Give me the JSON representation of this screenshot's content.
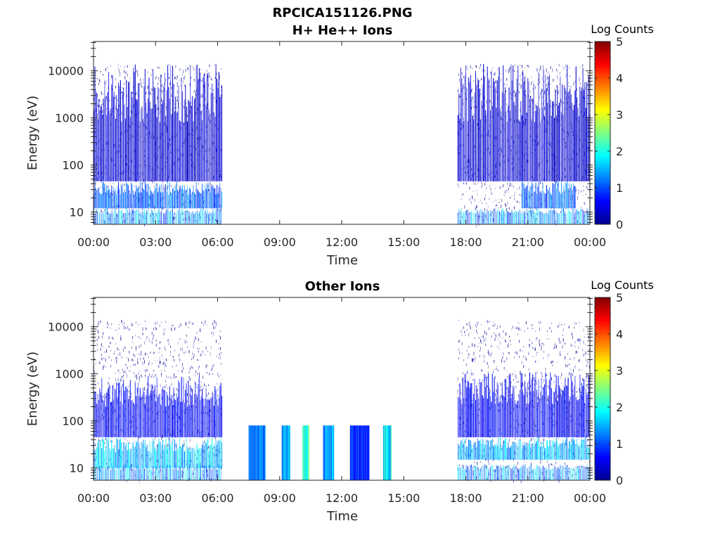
{
  "figure": {
    "title": "RPCICA151126.PNG"
  },
  "colormap": "jet",
  "chart_data": [
    {
      "type": "heatmap",
      "title": "H+ He++ Ions",
      "xlabel": "Time",
      "ylabel": "Energy (eV)",
      "x_ticks": [
        "00:00",
        "03:00",
        "06:00",
        "09:00",
        "12:00",
        "15:00",
        "18:00",
        "21:00",
        "00:00"
      ],
      "xlim_hours": [
        0,
        24
      ],
      "y_scale": "log",
      "y_ticks": [
        "10",
        "100",
        "1000",
        "10000"
      ],
      "ylim": [
        5.5,
        42000
      ],
      "colorbar": {
        "label": "Log Counts",
        "ticks": [
          "0",
          "1",
          "2",
          "3",
          "4",
          "5"
        ],
        "range": [
          0,
          5
        ]
      },
      "data_intervals_hours": [
        [
          0.0,
          6.2
        ],
        [
          17.6,
          24.0
        ]
      ],
      "gap_hours": [
        6.2,
        17.6
      ],
      "features": [
        {
          "start_h": 0.0,
          "end_h": 6.2,
          "e_low": 12,
          "e_high": 45,
          "log_counts": 1.1
        },
        {
          "start_h": 20.7,
          "end_h": 23.3,
          "e_low": 12,
          "e_high": 45,
          "log_counts": 1.1
        },
        {
          "start_h": 0.0,
          "end_h": 6.2,
          "e_low": 45,
          "e_high": 14000,
          "log_counts": 0.4
        },
        {
          "start_h": 17.6,
          "end_h": 24.0,
          "e_low": 45,
          "e_high": 14000,
          "log_counts": 0.4
        }
      ]
    },
    {
      "type": "heatmap",
      "title": "Other Ions",
      "xlabel": "Time",
      "ylabel": "Energy (eV)",
      "x_ticks": [
        "00:00",
        "03:00",
        "06:00",
        "09:00",
        "12:00",
        "15:00",
        "18:00",
        "21:00",
        "00:00"
      ],
      "xlim_hours": [
        0,
        24
      ],
      "y_scale": "log",
      "y_ticks": [
        "10",
        "100",
        "1000",
        "10000"
      ],
      "ylim": [
        5.5,
        42000
      ],
      "colorbar": {
        "label": "Log Counts",
        "ticks": [
          "0",
          "1",
          "2",
          "3",
          "4",
          "5"
        ],
        "range": [
          0,
          5
        ]
      },
      "data_intervals_hours": [
        [
          0.0,
          6.2
        ],
        [
          17.6,
          24.0
        ]
      ],
      "gap_hours": [
        6.2,
        17.6
      ],
      "features": [
        {
          "start_h": 0.0,
          "end_h": 6.2,
          "e_low": 10,
          "e_high": 45,
          "log_counts": 1.6
        },
        {
          "start_h": 17.6,
          "end_h": 24.0,
          "e_low": 15,
          "e_high": 45,
          "log_counts": 1.5
        },
        {
          "start_h": 0.0,
          "end_h": 6.2,
          "e_low": 45,
          "e_high": 900,
          "log_counts": 0.6
        },
        {
          "start_h": 17.6,
          "end_h": 24.0,
          "e_low": 45,
          "e_high": 1100,
          "log_counts": 0.6
        }
      ],
      "bursts": [
        {
          "start_h": 7.5,
          "end_h": 8.3,
          "e_low": 5.5,
          "e_high": 80,
          "log_counts": 1.2
        },
        {
          "start_h": 9.1,
          "end_h": 9.5,
          "e_low": 5.5,
          "e_high": 80,
          "log_counts": 1.4
        },
        {
          "start_h": 10.1,
          "end_h": 10.4,
          "e_low": 5.5,
          "e_high": 80,
          "log_counts": 2.2
        },
        {
          "start_h": 11.1,
          "end_h": 11.6,
          "e_low": 5.5,
          "e_high": 80,
          "log_counts": 1.4
        },
        {
          "start_h": 12.4,
          "end_h": 13.3,
          "e_low": 5.5,
          "e_high": 80,
          "log_counts": 0.8
        },
        {
          "start_h": 14.0,
          "end_h": 14.4,
          "e_low": 5.5,
          "e_high": 80,
          "log_counts": 1.8
        }
      ]
    }
  ]
}
